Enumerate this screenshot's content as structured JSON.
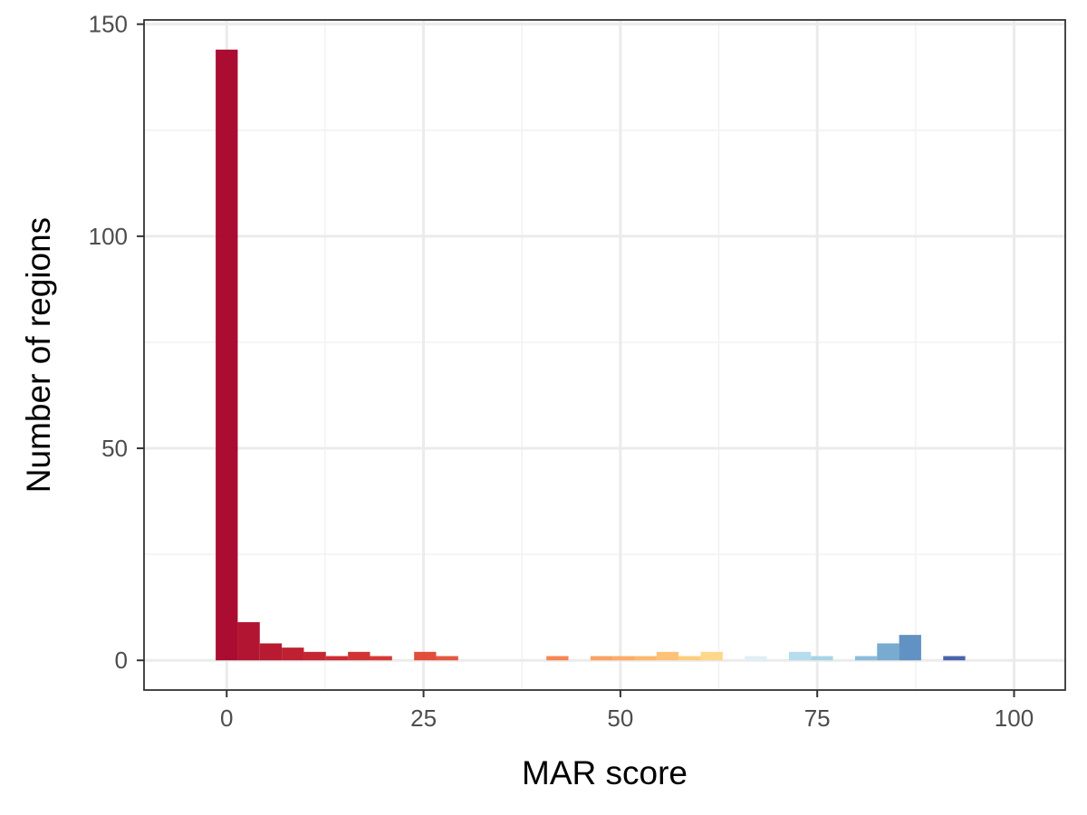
{
  "chart_data": {
    "type": "bar",
    "title": "",
    "xlabel": "MAR score",
    "ylabel": "Number of regions",
    "xlim": [
      -10.5,
      106.5
    ],
    "ylim": [
      -7,
      151
    ],
    "x_ticks": [
      0,
      25,
      50,
      75,
      100
    ],
    "y_ticks": [
      0,
      50,
      100,
      150
    ],
    "x_tick_labels": [
      "0",
      "25",
      "50",
      "75",
      "100"
    ],
    "y_tick_labels": [
      "0",
      "50",
      "100",
      "150"
    ],
    "bin_width": 2.8,
    "grid": true,
    "legend": false,
    "bins": [
      {
        "x": 0.0,
        "count": 144,
        "color": "#a50026"
      },
      {
        "x": 2.8,
        "count": 9,
        "color": "#ad0826"
      },
      {
        "x": 5.6,
        "count": 4,
        "color": "#b40f26"
      },
      {
        "x": 8.4,
        "count": 3,
        "color": "#bb1526"
      },
      {
        "x": 11.2,
        "count": 2,
        "color": "#c21b27"
      },
      {
        "x": 14.0,
        "count": 1,
        "color": "#c92128"
      },
      {
        "x": 16.8,
        "count": 2,
        "color": "#cf2829"
      },
      {
        "x": 19.6,
        "count": 1,
        "color": "#d42e2a"
      },
      {
        "x": 25.2,
        "count": 2,
        "color": "#de4532"
      },
      {
        "x": 28.0,
        "count": 1,
        "color": "#e24f37"
      },
      {
        "x": 42.0,
        "count": 1,
        "color": "#f57f4a"
      },
      {
        "x": 47.6,
        "count": 1,
        "color": "#fa9d59"
      },
      {
        "x": 50.4,
        "count": 1,
        "color": "#fba960"
      },
      {
        "x": 53.2,
        "count": 1,
        "color": "#fcb467"
      },
      {
        "x": 56.0,
        "count": 2,
        "color": "#fdbf6f"
      },
      {
        "x": 58.8,
        "count": 1,
        "color": "#fdca78"
      },
      {
        "x": 61.6,
        "count": 2,
        "color": "#fed585"
      },
      {
        "x": 67.2,
        "count": 1,
        "color": "#ddeef5"
      },
      {
        "x": 72.8,
        "count": 2,
        "color": "#b2dbea"
      },
      {
        "x": 75.6,
        "count": 1,
        "color": "#a3d2e5"
      },
      {
        "x": 81.2,
        "count": 1,
        "color": "#86b9da"
      },
      {
        "x": 84.0,
        "count": 4,
        "color": "#72a6cf"
      },
      {
        "x": 86.8,
        "count": 6,
        "color": "#5a8cc0"
      },
      {
        "x": 92.4,
        "count": 1,
        "color": "#3d5da5"
      }
    ]
  },
  "colors": {
    "panel_border": "#333333",
    "grid_major": "#ebebeb",
    "grid_minor": "#f2f2f2",
    "tick_text": "#4d4d4d"
  }
}
